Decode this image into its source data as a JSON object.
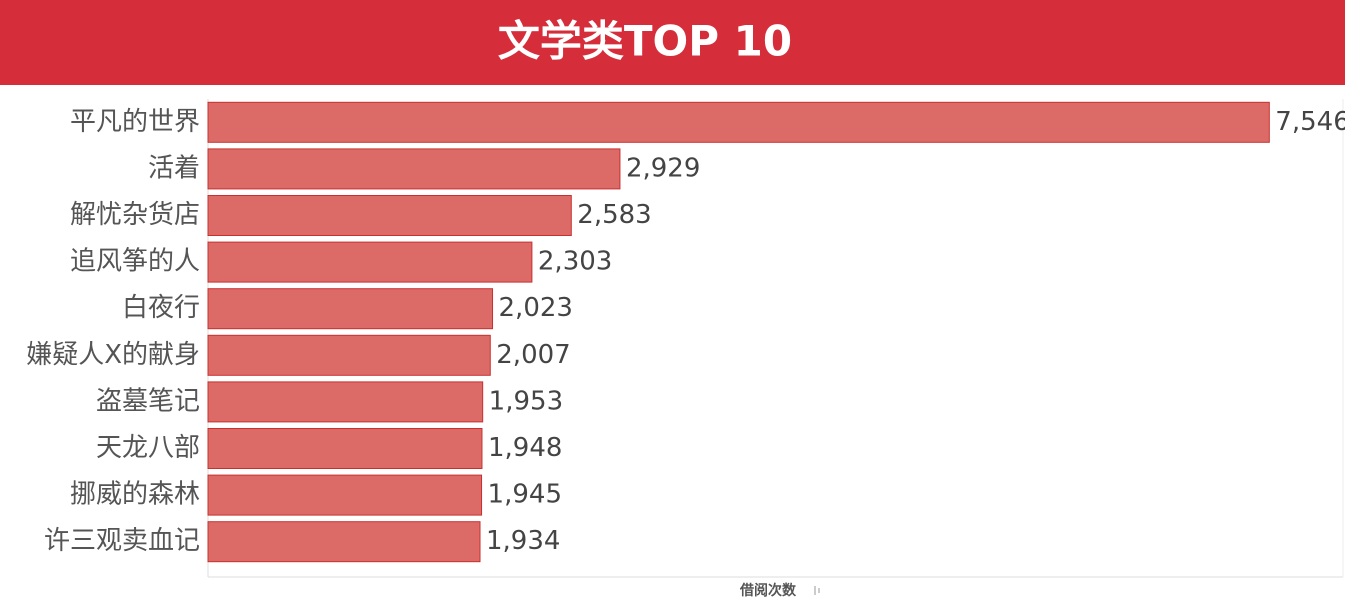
{
  "chart_data": {
    "type": "bar",
    "orientation": "horizontal",
    "title": "文学类TOP 10",
    "categories": [
      "平凡的世界",
      "活着",
      "解忧杂货店",
      "追风筝的人",
      "白夜行",
      "嫌疑人X的献身",
      "盗墓笔记",
      "天龙八部",
      "挪威的森林",
      "许三观卖血记"
    ],
    "values": [
      7546,
      2929,
      2583,
      2303,
      2023,
      2007,
      1953,
      1948,
      1945,
      1934
    ],
    "value_labels": [
      "7,546",
      "2,929",
      "2,583",
      "2,303",
      "2,023",
      "2,007",
      "1,953",
      "1,948",
      "1,945",
      "1,934"
    ],
    "color": "#dc6b67",
    "xlim": [
      0,
      8070
    ],
    "x_label": "借阅次数"
  }
}
